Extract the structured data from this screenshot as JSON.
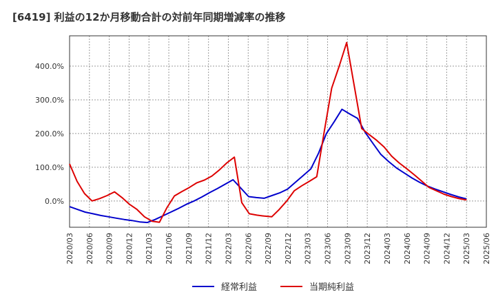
{
  "chart_data": {
    "type": "line",
    "title": "[6419]  利益の12か月移動合計の対前年同期増減率の推移",
    "xlabel": "",
    "ylabel": "",
    "ylim": [
      -78,
      490
    ],
    "x_tick_labels": [
      "2020/03",
      "2020/06",
      "2020/09",
      "2020/12",
      "2021/03",
      "2021/06",
      "2021/09",
      "2021/12",
      "2022/03",
      "2022/06",
      "2022/09",
      "2022/12",
      "2023/03",
      "2023/06",
      "2023/09",
      "2023/12",
      "2024/03",
      "2024/06",
      "2024/09",
      "2024/12",
      "2025/03",
      "2025/06"
    ],
    "y_ticks": [
      0,
      100,
      200,
      300,
      400
    ],
    "y_tick_labels": [
      "0.0%",
      "100.0%",
      "200.0%",
      "300.0%",
      "400.0%"
    ],
    "grid": true,
    "legend_position": "bottom",
    "series": [
      {
        "name": "経常利益",
        "color": "#0000cc",
        "values": [
          -17,
          -25,
          -33,
          -38,
          -43,
          -47,
          -51,
          -55,
          -58,
          -62,
          -64,
          -55,
          -44,
          -33,
          -22,
          -10,
          0,
          12,
          25,
          37,
          50,
          63,
          38,
          13,
          10,
          8,
          16,
          24,
          35,
          55,
          75,
          95,
          142,
          200,
          235,
          272,
          258,
          245,
          203,
          170,
          138,
          117,
          98,
          83,
          68,
          55,
          44,
          35,
          27,
          19,
          12,
          6
        ]
      },
      {
        "name": "当期純利益",
        "color": "#dd0000",
        "values": [
          110,
          58,
          22,
          0,
          7,
          16,
          27,
          10,
          -10,
          -25,
          -47,
          -60,
          -63,
          -20,
          15,
          28,
          40,
          54,
          62,
          74,
          92,
          113,
          130,
          -5,
          -38,
          -42,
          -45,
          -47,
          -25,
          0,
          30,
          45,
          58,
          72,
          205,
          335,
          400,
          470,
          343,
          215,
          197,
          180,
          160,
          133,
          113,
          96,
          78,
          59,
          40,
          30,
          20,
          13,
          7,
          3
        ]
      }
    ]
  }
}
